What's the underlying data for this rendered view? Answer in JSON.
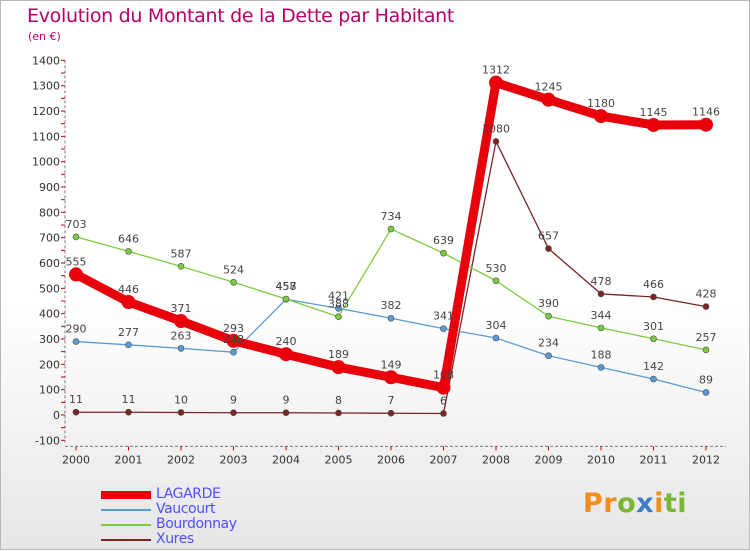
{
  "title": "Evolution du Montant de la Dette par Habitant",
  "subtitle": "(en €)",
  "logo": {
    "text": "Proxiti",
    "parts": [
      "Pr",
      "o",
      "x",
      "i",
      "ti"
    ]
  },
  "chart_data": {
    "type": "line",
    "title": "Evolution du Montant de la Dette par Habitant",
    "ylabel": "(en €)",
    "xlabel": "",
    "x": [
      "2000",
      "2001",
      "2002",
      "2003",
      "2004",
      "2005",
      "2006",
      "2007",
      "2008",
      "2009",
      "2010",
      "2011",
      "2012"
    ],
    "ylim": [
      -100,
      1400
    ],
    "yticks": [
      -100,
      0,
      100,
      200,
      300,
      400,
      500,
      600,
      700,
      800,
      900,
      1000,
      1100,
      1200,
      1300,
      1400
    ],
    "yticklabels": [
      "-100",
      "0",
      "100",
      "200",
      "300",
      "400",
      "500",
      "600",
      "700",
      "800",
      "900",
      "1000",
      "1100",
      "1200",
      "1300",
      "1400"
    ],
    "grid": false,
    "legend": "bottom-left",
    "series": [
      {
        "name": "LAGARDE",
        "color": "#e8000b",
        "values": [
          555,
          446,
          371,
          293,
          240,
          189,
          149,
          108,
          1312,
          1245,
          1180,
          1145,
          1146
        ],
        "labels": [
          "555",
          "446",
          "371",
          "293",
          "240",
          "189",
          "149",
          "108",
          "1312",
          "1245",
          "1180",
          "1145",
          "1146"
        ]
      },
      {
        "name": "Vaucourt",
        "color": "#5b9bd5",
        "values": [
          290,
          277,
          263,
          248,
          457,
          421,
          382,
          341,
          304,
          234,
          188,
          142,
          89
        ],
        "labels": [
          "290",
          "277",
          "263",
          "248",
          "457",
          "421",
          "382",
          "341",
          "304",
          "234",
          "188",
          "142",
          "89"
        ]
      },
      {
        "name": "Bourdonnay",
        "color": "#7ccc3f",
        "values": [
          703,
          646,
          587,
          524,
          458,
          388,
          734,
          639,
          530,
          390,
          344,
          301,
          257
        ],
        "labels": [
          "703",
          "646",
          "587",
          "524",
          "458",
          "388",
          "734",
          "639",
          "530",
          "390",
          "344",
          "301",
          "257"
        ]
      },
      {
        "name": "Xures",
        "color": "#7b2424",
        "values": [
          11,
          11,
          10,
          9,
          9,
          8,
          7,
          6,
          1080,
          657,
          478,
          466,
          428
        ],
        "labels": [
          "11",
          "11",
          "10",
          "9",
          "9",
          "8",
          "7",
          "6",
          "1080",
          "657",
          "478",
          "466",
          "428"
        ]
      }
    ]
  }
}
